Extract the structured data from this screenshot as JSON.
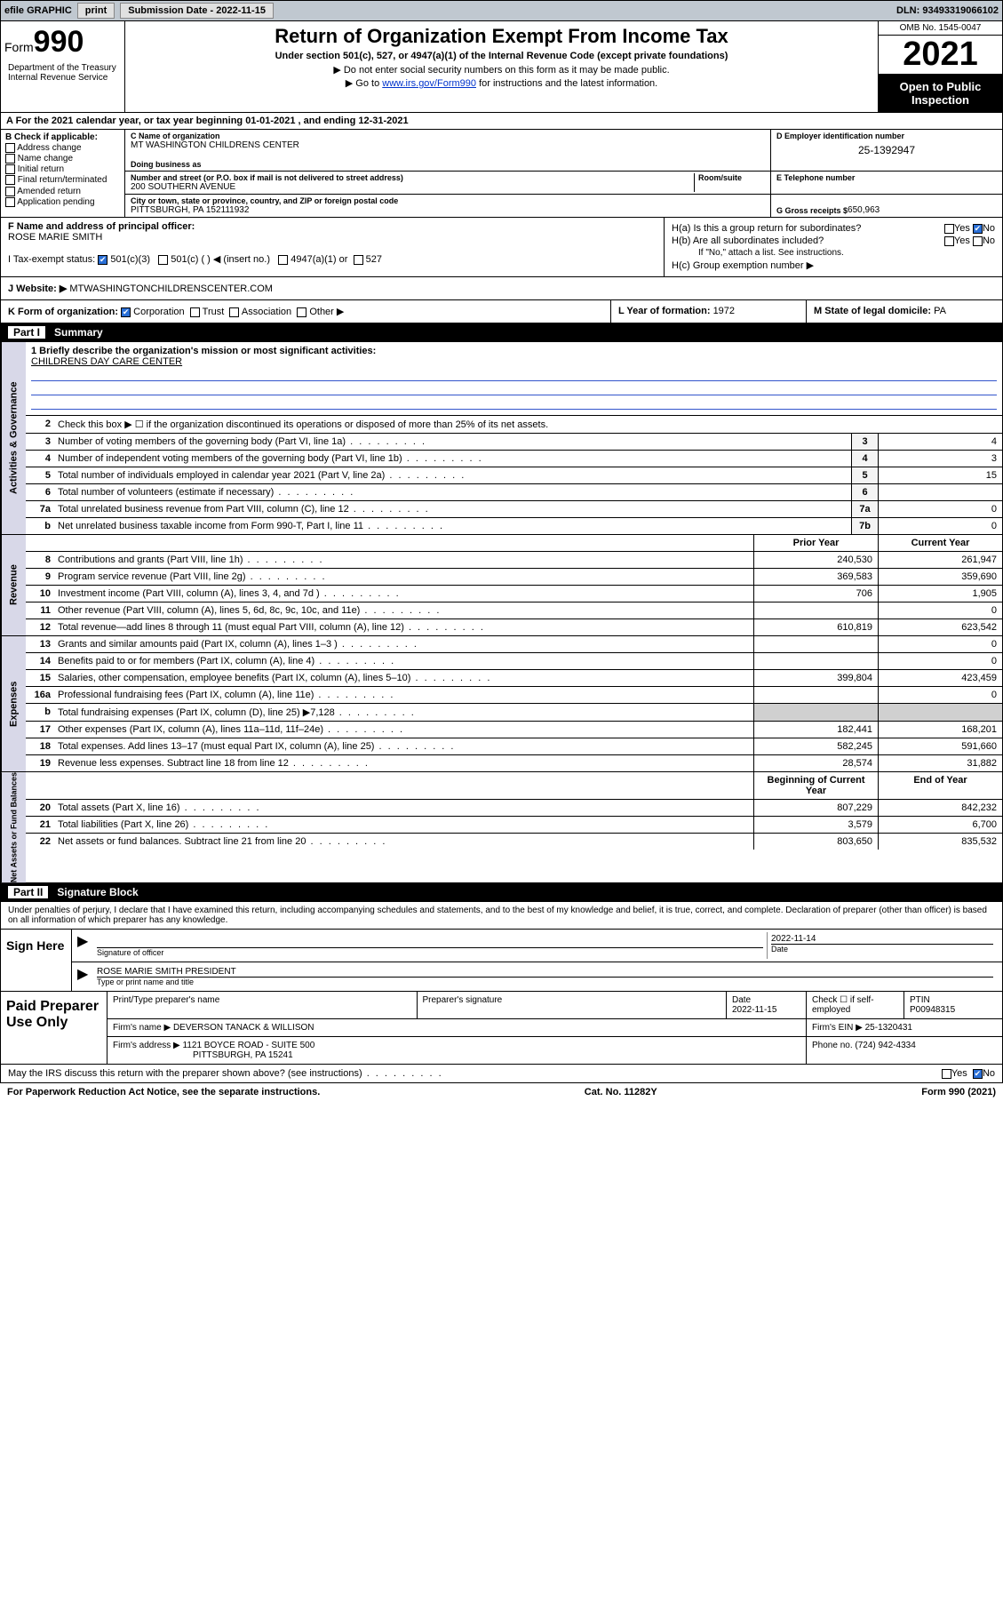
{
  "topbar": {
    "efile": "efile GRAPHIC",
    "print": "print",
    "subdate_label": "Submission Date - ",
    "subdate": "2022-11-15",
    "dln_label": "DLN: ",
    "dln": "93493319066102"
  },
  "header": {
    "form_label": "Form",
    "form_number": "990",
    "title": "Return of Organization Exempt From Income Tax",
    "subtitle": "Under section 501(c), 527, or 4947(a)(1) of the Internal Revenue Code (except private foundations)",
    "note1": "▶ Do not enter social security numbers on this form as it may be made public.",
    "note2_prefix": "▶ Go to ",
    "note2_link": "www.irs.gov/Form990",
    "note2_suffix": " for instructions and the latest information.",
    "dept": "Department of the Treasury\nInternal Revenue Service",
    "omb": "OMB No. 1545-0047",
    "year": "2021",
    "open": "Open to Public Inspection"
  },
  "rowA": {
    "text": "A For the 2021 calendar year, or tax year beginning 01-01-2021   , and ending 12-31-2021"
  },
  "colB": {
    "heading": "B Check if applicable:",
    "items": [
      "Address change",
      "Name change",
      "Initial return",
      "Final return/terminated",
      "Amended return",
      "Application pending"
    ]
  },
  "colC": {
    "name_label": "C Name of organization",
    "name": "MT WASHINGTON CHILDRENS CENTER",
    "dba_label": "Doing business as",
    "dba": "",
    "addr_label": "Number and street (or P.O. box if mail is not delivered to street address)",
    "room_label": "Room/suite",
    "addr": "200 SOUTHERN AVENUE",
    "city_label": "City or town, state or province, country, and ZIP or foreign postal code",
    "city": "PITTSBURGH, PA  152111932"
  },
  "colD": {
    "ein_label": "D Employer identification number",
    "ein": "25-1392947",
    "phone_label": "E Telephone number",
    "phone": "",
    "gross_label": "G Gross receipts $ ",
    "gross": "650,963"
  },
  "rowF": {
    "label": "F  Name and address of principal officer:",
    "name": "ROSE MARIE SMITH"
  },
  "rowH": {
    "ha": "H(a)  Is this a group return for subordinates?",
    "hb": "H(b)  Are all subordinates included?",
    "hb_note": "If \"No,\" attach a list. See instructions.",
    "hc": "H(c)  Group exemption number ▶",
    "yes": "Yes",
    "no": "No"
  },
  "rowI": {
    "label": "I   Tax-exempt status:",
    "opt1": "501(c)(3)",
    "opt2": "501(c) (  ) ◀ (insert no.)",
    "opt3": "4947(a)(1) or",
    "opt4": "527"
  },
  "rowJ": {
    "label": "J   Website: ▶",
    "value": "MTWASHINGTONCHILDRENSCENTER.COM"
  },
  "rowK": {
    "label": "K Form of organization:",
    "opts": [
      "Corporation",
      "Trust",
      "Association",
      "Other ▶"
    ]
  },
  "rowL": {
    "label": "L Year of formation: ",
    "value": "1972"
  },
  "rowM": {
    "label": "M State of legal domicile: ",
    "value": "PA"
  },
  "part1": {
    "part": "Part I",
    "title": "Summary"
  },
  "mission": {
    "q1": "1   Briefly describe the organization's mission or most significant activities:",
    "text": "CHILDRENS DAY CARE CENTER"
  },
  "gov": {
    "label": "Activities & Governance",
    "line2": "Check this box ▶ ☐  if the organization discontinued its operations or disposed of more than 25% of its net assets.",
    "rows": [
      {
        "n": "3",
        "d": "Number of voting members of the governing body (Part VI, line 1a)",
        "box": "3",
        "v": "4"
      },
      {
        "n": "4",
        "d": "Number of independent voting members of the governing body (Part VI, line 1b)",
        "box": "4",
        "v": "3"
      },
      {
        "n": "5",
        "d": "Total number of individuals employed in calendar year 2021 (Part V, line 2a)",
        "box": "5",
        "v": "15"
      },
      {
        "n": "6",
        "d": "Total number of volunteers (estimate if necessary)",
        "box": "6",
        "v": ""
      },
      {
        "n": "7a",
        "d": "Total unrelated business revenue from Part VIII, column (C), line 12",
        "box": "7a",
        "v": "0"
      },
      {
        "n": "b",
        "d": "Net unrelated business taxable income from Form 990-T, Part I, line 11",
        "box": "7b",
        "v": "0"
      }
    ]
  },
  "rev": {
    "label": "Revenue",
    "hdr_prior": "Prior Year",
    "hdr_curr": "Current Year",
    "rows": [
      {
        "n": "8",
        "d": "Contributions and grants (Part VIII, line 1h)",
        "p": "240,530",
        "c": "261,947"
      },
      {
        "n": "9",
        "d": "Program service revenue (Part VIII, line 2g)",
        "p": "369,583",
        "c": "359,690"
      },
      {
        "n": "10",
        "d": "Investment income (Part VIII, column (A), lines 3, 4, and 7d )",
        "p": "706",
        "c": "1,905"
      },
      {
        "n": "11",
        "d": "Other revenue (Part VIII, column (A), lines 5, 6d, 8c, 9c, 10c, and 11e)",
        "p": "",
        "c": "0"
      },
      {
        "n": "12",
        "d": "Total revenue—add lines 8 through 11 (must equal Part VIII, column (A), line 12)",
        "p": "610,819",
        "c": "623,542"
      }
    ]
  },
  "exp": {
    "label": "Expenses",
    "rows": [
      {
        "n": "13",
        "d": "Grants and similar amounts paid (Part IX, column (A), lines 1–3 )",
        "p": "",
        "c": "0"
      },
      {
        "n": "14",
        "d": "Benefits paid to or for members (Part IX, column (A), line 4)",
        "p": "",
        "c": "0"
      },
      {
        "n": "15",
        "d": "Salaries, other compensation, employee benefits (Part IX, column (A), lines 5–10)",
        "p": "399,804",
        "c": "423,459"
      },
      {
        "n": "16a",
        "d": "Professional fundraising fees (Part IX, column (A), line 11e)",
        "p": "",
        "c": "0"
      },
      {
        "n": "b",
        "d": "Total fundraising expenses (Part IX, column (D), line 25) ▶7,128",
        "p": "shade",
        "c": "shade"
      },
      {
        "n": "17",
        "d": "Other expenses (Part IX, column (A), lines 11a–11d, 11f–24e)",
        "p": "182,441",
        "c": "168,201"
      },
      {
        "n": "18",
        "d": "Total expenses. Add lines 13–17 (must equal Part IX, column (A), line 25)",
        "p": "582,245",
        "c": "591,660"
      },
      {
        "n": "19",
        "d": "Revenue less expenses. Subtract line 18 from line 12",
        "p": "28,574",
        "c": "31,882"
      }
    ]
  },
  "net": {
    "label": "Net Assets or Fund Balances",
    "hdr_begin": "Beginning of Current Year",
    "hdr_end": "End of Year",
    "rows": [
      {
        "n": "20",
        "d": "Total assets (Part X, line 16)",
        "p": "807,229",
        "c": "842,232"
      },
      {
        "n": "21",
        "d": "Total liabilities (Part X, line 26)",
        "p": "3,579",
        "c": "6,700"
      },
      {
        "n": "22",
        "d": "Net assets or fund balances. Subtract line 21 from line 20",
        "p": "803,650",
        "c": "835,532"
      }
    ]
  },
  "part2": {
    "part": "Part II",
    "title": "Signature Block"
  },
  "sig": {
    "intro": "Under penalties of perjury, I declare that I have examined this return, including accompanying schedules and statements, and to the best of my knowledge and belief, it is true, correct, and complete. Declaration of preparer (other than officer) is based on all information of which preparer has any knowledge.",
    "sign_here": "Sign Here",
    "sig_of_officer": "Signature of officer",
    "date_label": "Date",
    "date": "2022-11-14",
    "officer_name": "ROSE MARIE SMITH  PRESIDENT",
    "type_label": "Type or print name and title"
  },
  "paid": {
    "label": "Paid Preparer Use Only",
    "hdr": [
      "Print/Type preparer's name",
      "Preparer's signature",
      "Date",
      "Check ☐ if self-employed",
      "PTIN"
    ],
    "date": "2022-11-15",
    "ptin": "P00948315",
    "firm_name_label": "Firm's name     ▶",
    "firm_name": "DEVERSON TANACK & WILLISON",
    "firm_ein_label": "Firm's EIN ▶",
    "firm_ein": "25-1320431",
    "firm_addr_label": "Firm's address ▶",
    "firm_addr1": "1121 BOYCE ROAD - SUITE 500",
    "firm_addr2": "PITTSBURGH, PA  15241",
    "phone_label": "Phone no. ",
    "phone": "(724) 942-4334"
  },
  "footer": {
    "discuss": "May the IRS discuss this return with the preparer shown above? (see instructions)",
    "yes": "Yes",
    "no": "No",
    "paperwork": "For Paperwork Reduction Act Notice, see the separate instructions.",
    "cat": "Cat. No. 11282Y",
    "formref": "Form 990 (2021)"
  }
}
